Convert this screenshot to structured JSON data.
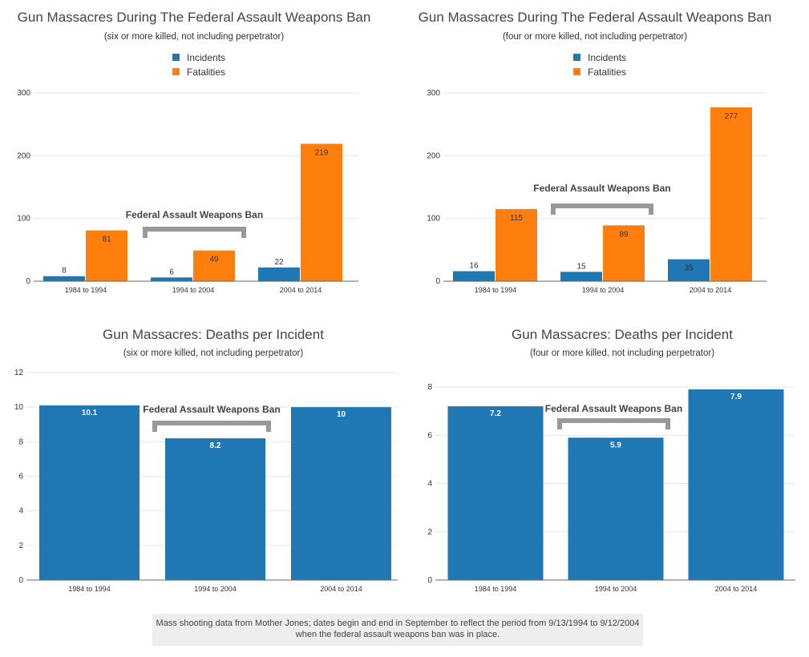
{
  "chart_data": [
    {
      "type": "bar",
      "title": "Gun Massacres During The Federal Assault Weapons Ban",
      "subtitle": "(six or more killed, not including perpetrator)",
      "categories": [
        "1984 to 1994",
        "1994 to 2004",
        "2004 to 2014"
      ],
      "series": [
        {
          "name": "Incidents",
          "color": "#1f77b4",
          "values": [
            8,
            6,
            22
          ]
        },
        {
          "name": "Fatalities",
          "color": "#ff7f0e",
          "values": [
            81,
            49,
            219
          ]
        }
      ],
      "ylim": [
        0,
        300
      ],
      "yticks": [
        0,
        100,
        200,
        300
      ],
      "annotation": "Federal Assault Weapons Ban",
      "legend": "top-center"
    },
    {
      "type": "bar",
      "title": "Gun Massacres During The Federal Assault Weapons Ban",
      "subtitle": "(four or more killed, not including perpetrator)",
      "categories": [
        "1984 to 1994",
        "1994 to 2004",
        "2004 to 2014"
      ],
      "series": [
        {
          "name": "Incidents",
          "color": "#1f77b4",
          "values": [
            16,
            15,
            35
          ]
        },
        {
          "name": "Fatalities",
          "color": "#ff7f0e",
          "values": [
            115,
            89,
            277
          ]
        }
      ],
      "ylim": [
        0,
        300
      ],
      "yticks": [
        0,
        100,
        200,
        300
      ],
      "annotation": "Federal Assault Weapons Ban",
      "legend": "top-center"
    },
    {
      "type": "bar",
      "title": "Gun Massacres: Deaths per Incident",
      "subtitle": "(six or more killed, not including perpetrator)",
      "categories": [
        "1984 to 1994",
        "1994 to 2004",
        "2004 to 2014"
      ],
      "series": [
        {
          "name": "Deaths per Incident",
          "color": "#1f77b4",
          "values": [
            10.1,
            8.2,
            10
          ],
          "labels": [
            "10.1",
            "8.2",
            "10"
          ]
        }
      ],
      "ylim": [
        0,
        12
      ],
      "yticks": [
        0,
        2,
        4,
        6,
        8,
        10,
        12
      ],
      "annotation": "Federal Assault Weapons Ban"
    },
    {
      "type": "bar",
      "title": "Gun Massacres: Deaths per Incident",
      "subtitle": "(four or more killed, not including perpetrator)",
      "categories": [
        "1984 to 1994",
        "1994 to 2004",
        "2004 to 2014"
      ],
      "series": [
        {
          "name": "Deaths per Incident",
          "color": "#1f77b4",
          "values": [
            7.2,
            5.9,
            7.9
          ],
          "labels": [
            "7.2",
            "5.9",
            "7.9"
          ]
        }
      ],
      "ylim": [
        0,
        8
      ],
      "yticks": [
        0,
        2,
        4,
        6,
        8
      ],
      "annotation": "Federal Assault Weapons Ban"
    }
  ],
  "footnote": {
    "line1": "Mass shooting data from Mother Jones; dates begin and end in September to reflect the period from 9/13/1994 to 9/12/2004",
    "line2": "when the federal assault weapons ban was in place."
  },
  "colors": {
    "bracket": "#999999",
    "grid": "#e6e6e6",
    "axis": "#666666"
  }
}
